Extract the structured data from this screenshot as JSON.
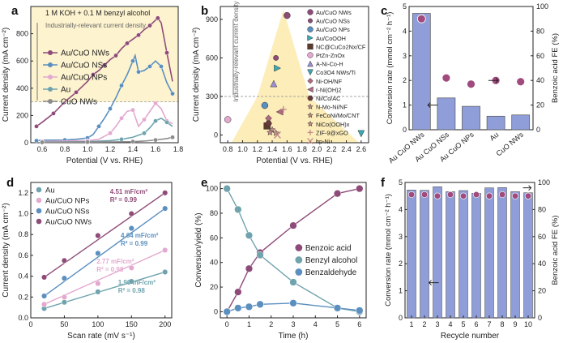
{
  "colors": {
    "nws": "#8e4b78",
    "nss": "#5a8fbf",
    "nps": "#e3a9cf",
    "au": "#6fa3ad",
    "cuo": "#8c8c8c",
    "bar": "#8f9ed8",
    "dot": "#a04a7e",
    "yellow": "#fbe9a8",
    "axis": "#222222"
  },
  "chart_data": [
    {
      "panel": "a",
      "type": "line",
      "title": "",
      "xlabel": "Potential (V vs. RHE)",
      "ylabel": "Current density (mA cm⁻²)",
      "xlim": [
        0.5,
        1.8
      ],
      "ylim": [
        0,
        1000
      ],
      "xticks": [
        "0.6",
        "0.8",
        "1.0",
        "1.2",
        "1.4",
        "1.6",
        "1.8"
      ],
      "yticks": [
        "0",
        "200",
        "400",
        "600",
        "800"
      ],
      "annotations": {
        "electrolyte": "1 M KOH + 0.1 M benzyl alcohol",
        "region": "Industrially-relevant current density"
      },
      "series": [
        {
          "name": "Au/CuO NWs",
          "key": "nws",
          "x": [
            0.55,
            0.6,
            0.7,
            0.8,
            0.9,
            1.0,
            1.05,
            1.1,
            1.15,
            1.2,
            1.25,
            1.3,
            1.35,
            1.4,
            1.45,
            1.5,
            1.55,
            1.6,
            1.62,
            1.65,
            1.7,
            1.75
          ],
          "y": [
            120,
            150,
            215,
            300,
            370,
            450,
            500,
            530,
            570,
            610,
            640,
            690,
            730,
            760,
            790,
            830,
            860,
            900,
            915,
            880,
            660,
            450
          ]
        },
        {
          "name": "Au/CuO NSs",
          "key": "nss",
          "x": [
            0.55,
            0.6,
            0.8,
            0.9,
            1.0,
            1.05,
            1.1,
            1.15,
            1.2,
            1.25,
            1.3,
            1.35,
            1.4,
            1.42,
            1.45,
            1.5,
            1.55,
            1.6,
            1.65,
            1.7,
            1.75
          ],
          "y": [
            15,
            18,
            20,
            25,
            35,
            60,
            120,
            180,
            250,
            330,
            420,
            500,
            600,
            640,
            520,
            530,
            560,
            600,
            560,
            440,
            360
          ]
        },
        {
          "name": "Au/CuO NPs",
          "key": "nps",
          "x": [
            0.6,
            0.8,
            1.0,
            1.1,
            1.2,
            1.25,
            1.3,
            1.35,
            1.4,
            1.45,
            1.5,
            1.55,
            1.6,
            1.65,
            1.7,
            1.75
          ],
          "y": [
            10,
            12,
            15,
            25,
            70,
            120,
            180,
            230,
            240,
            120,
            170,
            230,
            290,
            250,
            160,
            140
          ]
        },
        {
          "name": "Au",
          "key": "au",
          "x": [
            0.6,
            0.8,
            1.0,
            1.2,
            1.3,
            1.4,
            1.5,
            1.55,
            1.6,
            1.65,
            1.7,
            1.75
          ],
          "y": [
            5,
            6,
            8,
            15,
            25,
            40,
            70,
            110,
            160,
            180,
            150,
            120
          ]
        },
        {
          "name": "CuO NWs",
          "key": "cuo",
          "x": [
            0.6,
            0.8,
            1.0,
            1.2,
            1.4,
            1.5,
            1.6,
            1.7,
            1.75
          ],
          "y": [
            3,
            4,
            5,
            6,
            8,
            12,
            20,
            30,
            40
          ]
        }
      ]
    },
    {
      "panel": "b",
      "type": "scatter",
      "xlabel": "Potential (V vs. RHE)",
      "ylabel": "Current density (mA cm⁻²)",
      "xlim": [
        0.7,
        2.7
      ],
      "ylim": [
        -60,
        1000
      ],
      "xticks": [
        "0.8",
        "1.0",
        "1.2",
        "1.4",
        "1.6",
        "1.8",
        "2.0",
        "2.2",
        "2.4",
        "2.6"
      ],
      "yticks": [
        "0",
        "300",
        "600",
        "900"
      ],
      "annotations": {
        "region": "Industrially-relevant current density"
      },
      "points": [
        {
          "name": "Au/CuO NWs",
          "x": 1.6,
          "y": 930,
          "color": "#8e4b78",
          "marker": "circle"
        },
        {
          "name": "Au/CuO NSs",
          "x": 1.45,
          "y": 600,
          "color": "#8e4b78",
          "marker": "circle-sm"
        },
        {
          "name": "Au/CuO NPs",
          "x": 1.3,
          "y": 230,
          "color": "#5a8fbf",
          "marker": "circle"
        },
        {
          "name": "Au/CoOOH",
          "x": 1.47,
          "y": 520,
          "color": "#3aa9b0",
          "marker": "tri-right"
        },
        {
          "name": "NC@CuCo2Nx/CF",
          "x": 1.33,
          "y": 70,
          "color": "#5a3a2a",
          "marker": "square"
        },
        {
          "name": "PtZn-ZnOx",
          "x": 0.8,
          "y": 120,
          "color": "#e3a9cf",
          "marker": "circle"
        },
        {
          "name": "A-Ni-Co-H",
          "x": 1.42,
          "y": 400,
          "color": "#9b8fd8",
          "marker": "tri-up"
        },
        {
          "name": "Co3O4 NWs/Ti",
          "x": 2.6,
          "y": 10,
          "color": "#3aa9b0",
          "marker": "tri-down"
        },
        {
          "name": "Ni-OH/NF",
          "x": 1.35,
          "y": 130,
          "color": "#b06a80",
          "marker": "diamond"
        },
        {
          "name": "r-Ni(OH)2",
          "x": 1.5,
          "y": 180,
          "color": "#b06a80",
          "marker": "tri-left"
        },
        {
          "name": "Ni/Co/AC",
          "x": 1.35,
          "y": 90,
          "color": "#6a3a3a",
          "marker": "hexagon"
        },
        {
          "name": "N-Mo-Ni/NF",
          "x": 1.4,
          "y": 40,
          "color": "#c08a8a",
          "marker": "star"
        },
        {
          "name": "FeCoNi/Mo/CNT",
          "x": 1.37,
          "y": 20,
          "color": "#c08a8a",
          "marker": "star"
        },
        {
          "name": "NiCo(OOH)x",
          "x": 1.45,
          "y": 15,
          "color": "#c08a8a",
          "marker": "star"
        },
        {
          "name": "ZIF-9@xGO",
          "x": 1.55,
          "y": 200,
          "color": "#c08a8a",
          "marker": "plus"
        },
        {
          "name": "hp-Ni",
          "x": 1.47,
          "y": 0,
          "color": "#c08a8a",
          "marker": "x"
        }
      ]
    },
    {
      "panel": "c",
      "type": "bar",
      "xlabel": "",
      "ylabel": "Conversion rate (mmol cm⁻² h⁻¹)",
      "ylabel2": "Benzoic acid FE (%)",
      "categories": [
        "Au CuO NWs",
        "Au CuO NSs",
        "Au CuO NPs",
        "Au",
        "CuO NWs"
      ],
      "values": [
        4.72,
        1.29,
        0.95,
        0.55,
        0.6
      ],
      "fe": [
        90,
        42,
        37,
        40,
        39
      ],
      "ylim": [
        0,
        5
      ],
      "ylim2": [
        0,
        100
      ],
      "yticks": [
        "0",
        "1",
        "2",
        "3",
        "4",
        "5"
      ],
      "yticks2": [
        "0",
        "20",
        "40",
        "60",
        "80",
        "100"
      ]
    },
    {
      "panel": "d",
      "type": "scatter",
      "xlabel": "Scan rate (mV s⁻¹)",
      "ylabel": "Current density (mA cm⁻²)",
      "xlim": [
        0,
        210
      ],
      "ylim": [
        0,
        1.3
      ],
      "xticks": [
        "0",
        "50",
        "100",
        "150",
        "200"
      ],
      "yticks": [
        "0.0",
        "0.2",
        "0.4",
        "0.6",
        "0.8",
        "1.0",
        "1.2"
      ],
      "x": [
        20,
        50,
        100,
        150,
        200
      ],
      "series": [
        {
          "name": "Au",
          "key": "au",
          "values": [
            0.09,
            0.15,
            0.25,
            0.35,
            0.44
          ],
          "slope": "1.96 mF/cm²",
          "r2": "R² = 0.98"
        },
        {
          "name": "Au/CuO NPs",
          "key": "nps",
          "values": [
            0.13,
            0.2,
            0.33,
            0.48,
            0.65
          ],
          "slope": "2.77 mF/cm²",
          "r2": "R² = 0.98"
        },
        {
          "name": "Au/CuO NSs",
          "key": "nss",
          "values": [
            0.21,
            0.38,
            0.62,
            0.86,
            1.05
          ],
          "slope": "4.64 mF/cm²",
          "r2": "R² = 0.99"
        },
        {
          "name": "Au/CuO NWs",
          "key": "nws",
          "values": [
            0.39,
            0.55,
            0.79,
            1.0,
            1.2
          ],
          "slope": "4.51 mF/cm²",
          "r2": "R² = 0.99"
        }
      ]
    },
    {
      "panel": "e",
      "type": "line",
      "xlabel": "Time (h)",
      "ylabel": "Conversion/yield (%)",
      "xlim": [
        -0.3,
        6.3
      ],
      "ylim": [
        -5,
        105
      ],
      "xticks": [
        "0",
        "1",
        "2",
        "3",
        "4",
        "5",
        "6"
      ],
      "yticks": [
        "0",
        "20",
        "40",
        "60",
        "80",
        "100"
      ],
      "x": [
        0,
        0.5,
        1,
        1.5,
        3,
        5,
        6
      ],
      "series": [
        {
          "name": "Benzoic acid",
          "key": "nws",
          "values": [
            0,
            16,
            35,
            48,
            70,
            96,
            100
          ]
        },
        {
          "name": "Benzyl alcohol",
          "key": "au",
          "values": [
            100,
            83,
            62,
            46,
            24,
            3,
            0
          ]
        },
        {
          "name": "Benzaldehyde",
          "key": "nss",
          "values": [
            0,
            3,
            4,
            6,
            7,
            3,
            1
          ]
        }
      ]
    },
    {
      "panel": "f",
      "type": "bar",
      "xlabel": "Recycle number",
      "ylabel": "Conversion rate (mmol cm⁻² h⁻¹)",
      "ylabel2": "Benzoic acid FE (%)",
      "categories": [
        "1",
        "2",
        "3",
        "4",
        "5",
        "6",
        "7",
        "8",
        "9",
        "10"
      ],
      "values": [
        4.72,
        4.71,
        4.84,
        4.66,
        4.7,
        4.6,
        4.8,
        4.81,
        4.66,
        4.62
      ],
      "fe": [
        91,
        91,
        90,
        91,
        90,
        91,
        90,
        91,
        90,
        90
      ],
      "ylim": [
        0,
        5
      ],
      "ylim2": [
        0,
        100
      ],
      "yticks": [
        "0",
        "1",
        "2",
        "3",
        "4",
        "5"
      ],
      "yticks2": [
        "0",
        "20",
        "40",
        "60",
        "80",
        "100"
      ]
    }
  ]
}
